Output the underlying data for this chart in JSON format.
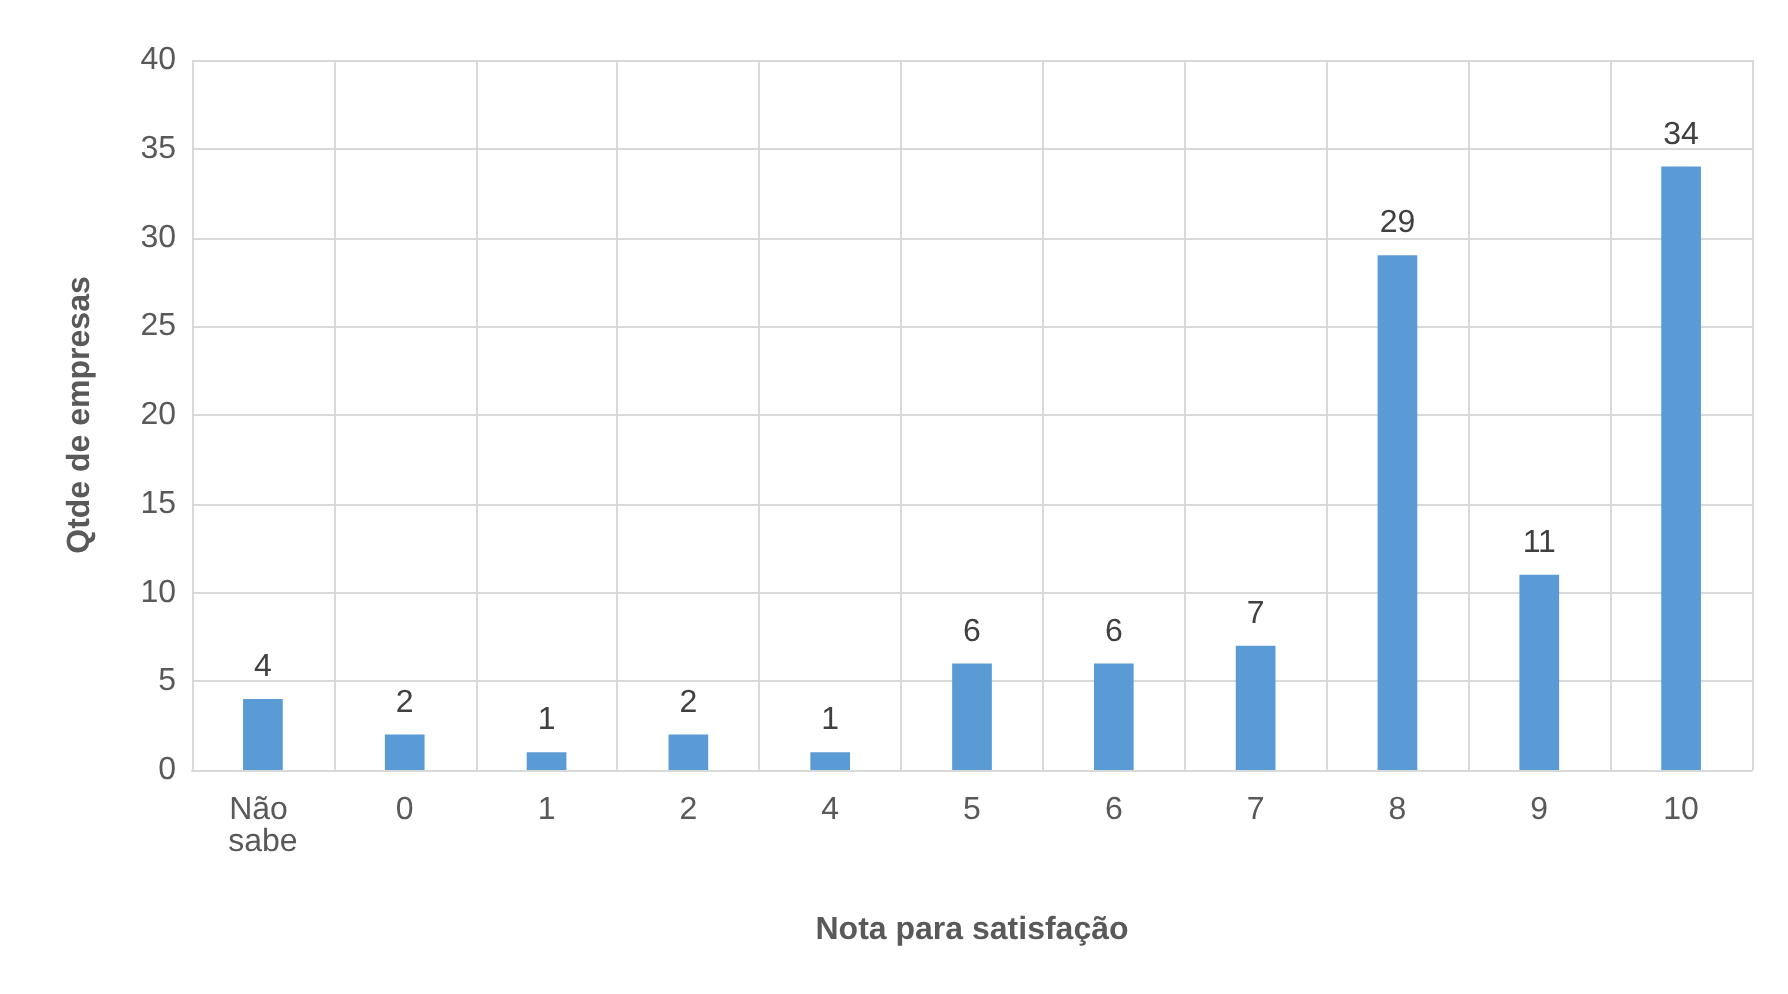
{
  "chart_data": {
    "type": "bar",
    "xlabel": "Nota para satisfação",
    "ylabel": "Qtde de empresas",
    "categories": [
      "Não sabe",
      "0",
      "1",
      "2",
      "4",
      "5",
      "6",
      "7",
      "8",
      "9",
      "10"
    ],
    "values": [
      4,
      2,
      1,
      2,
      1,
      6,
      6,
      7,
      29,
      11,
      34
    ],
    "color": "#5b9bd5",
    "ylim": [
      0,
      40
    ],
    "yticks": [
      0,
      5,
      10,
      15,
      20,
      25,
      30,
      35,
      40
    ],
    "grid": true,
    "data_labels": true
  }
}
